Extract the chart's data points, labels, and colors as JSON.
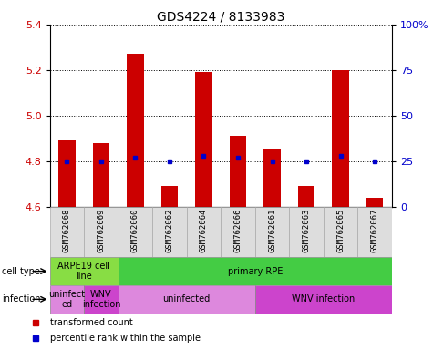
{
  "title": "GDS4224 / 8133983",
  "samples": [
    "GSM762068",
    "GSM762069",
    "GSM762060",
    "GSM762062",
    "GSM762064",
    "GSM762066",
    "GSM762061",
    "GSM762063",
    "GSM762065",
    "GSM762067"
  ],
  "transformed_counts": [
    4.89,
    4.88,
    5.27,
    4.69,
    5.19,
    4.91,
    4.85,
    4.69,
    5.2,
    4.64
  ],
  "percentile_ranks": [
    25,
    25,
    27,
    25,
    28,
    27,
    25,
    25,
    28,
    25
  ],
  "ylim": [
    4.6,
    5.4
  ],
  "y2lim": [
    0,
    100
  ],
  "yticks": [
    4.6,
    4.8,
    5.0,
    5.2,
    5.4
  ],
  "y2ticks": [
    0,
    25,
    50,
    75,
    100
  ],
  "y2ticklabels": [
    "0",
    "25",
    "50",
    "75",
    "100%"
  ],
  "bar_color": "#cc0000",
  "dot_color": "#0000cc",
  "bar_width": 0.5,
  "cell_type_labels": [
    {
      "text": "ARPE19 cell\nline",
      "start": 0,
      "end": 2,
      "color": "#88dd44"
    },
    {
      "text": "primary RPE",
      "start": 2,
      "end": 10,
      "color": "#44cc44"
    }
  ],
  "infection_labels": [
    {
      "text": "uninfect\ned",
      "start": 0,
      "end": 1,
      "color": "#dd88dd"
    },
    {
      "text": "WNV\ninfection",
      "start": 1,
      "end": 2,
      "color": "#cc44cc"
    },
    {
      "text": "uninfected",
      "start": 2,
      "end": 6,
      "color": "#dd88dd"
    },
    {
      "text": "WNV infection",
      "start": 6,
      "end": 10,
      "color": "#cc44cc"
    }
  ],
  "row_labels": [
    "cell type",
    "infection"
  ],
  "legend_items": [
    {
      "color": "#cc0000",
      "label": "transformed count"
    },
    {
      "color": "#0000cc",
      "label": "percentile rank within the sample"
    }
  ],
  "tick_label_color_left": "#cc0000",
  "tick_label_color_right": "#0000cc",
  "title_fontsize": 10,
  "axis_fontsize": 8,
  "sample_fontsize": 6.5
}
